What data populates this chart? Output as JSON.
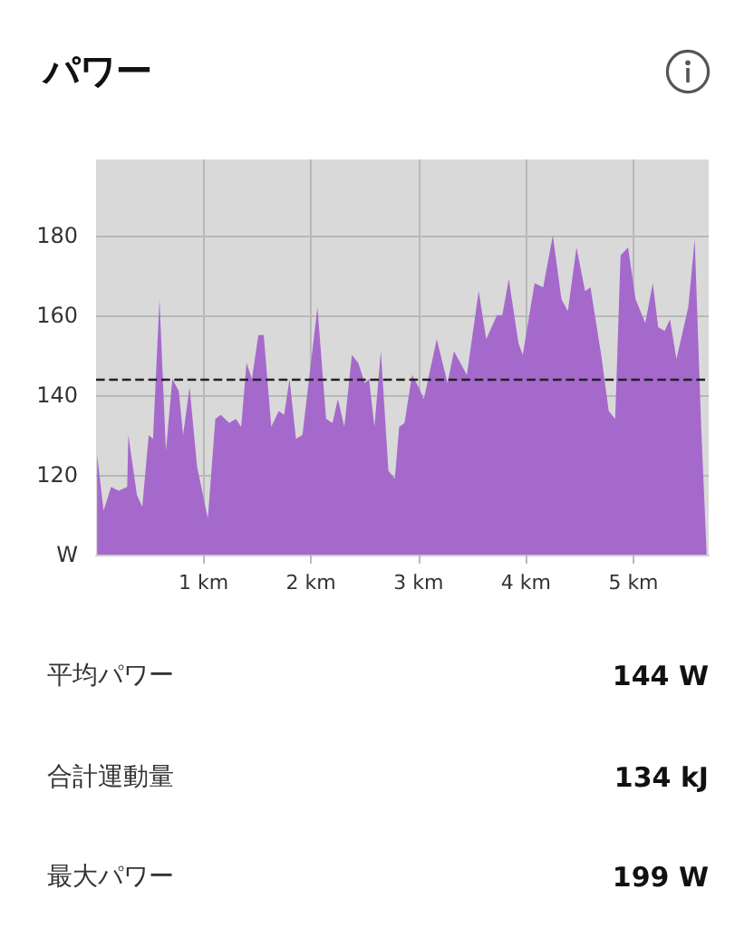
{
  "chart_data": {
    "type": "area",
    "title": "パワー",
    "x": [
      0.01,
      0.07,
      0.14,
      0.21,
      0.29,
      0.3,
      0.38,
      0.43,
      0.49,
      0.53,
      0.59,
      0.65,
      0.71,
      0.77,
      0.81,
      0.87,
      0.94,
      1.04,
      1.11,
      1.16,
      1.24,
      1.3,
      1.35,
      1.4,
      1.45,
      1.51,
      1.56,
      1.63,
      1.7,
      1.75,
      1.8,
      1.86,
      1.92,
      2.06,
      2.14,
      2.2,
      2.25,
      2.31,
      2.38,
      2.44,
      2.5,
      2.54,
      2.59,
      2.65,
      2.72,
      2.78,
      2.82,
      2.87,
      2.94,
      3.0,
      3.05,
      3.17,
      3.27,
      3.33,
      3.45,
      3.56,
      3.63,
      3.73,
      3.78,
      3.84,
      3.93,
      3.97,
      4.08,
      4.16,
      4.25,
      4.33,
      4.39,
      4.47,
      4.55,
      4.6,
      4.7,
      4.77,
      4.83,
      4.88,
      4.95,
      5.02,
      5.11,
      5.18,
      5.23,
      5.29,
      5.34,
      5.4,
      5.51,
      5.57,
      5.63,
      5.68
    ],
    "series": [
      {
        "color": "#a569cb",
        "values": [
          125,
          111,
          117,
          116,
          117,
          130,
          115,
          112,
          130,
          129,
          164,
          126,
          144,
          141,
          130,
          142,
          122,
          109,
          134,
          135,
          133,
          134,
          132,
          148,
          144,
          155,
          155,
          132,
          136,
          135,
          144,
          129,
          130,
          162,
          134,
          133,
          139,
          132,
          150,
          148,
          143,
          144,
          132,
          151,
          121,
          119,
          132,
          133,
          145,
          142,
          139,
          154,
          143,
          151,
          145,
          166,
          154,
          160,
          160,
          169,
          153,
          150,
          168,
          167,
          180,
          164,
          161,
          177,
          166,
          167,
          150,
          136,
          134,
          175,
          177,
          164,
          158,
          168,
          157,
          156,
          159,
          149,
          162,
          179,
          132,
          101
        ]
      }
    ],
    "xlim": [
      0,
      5.7
    ],
    "xticks": [
      {
        "value": 1,
        "label": "1 km"
      },
      {
        "value": 2,
        "label": "2 km"
      },
      {
        "value": 3,
        "label": "3 km"
      },
      {
        "value": 4,
        "label": "4 km"
      },
      {
        "value": 5,
        "label": "5 km"
      }
    ],
    "ylim": [
      100,
      199
    ],
    "yticks": [
      {
        "value": 100,
        "label": "W"
      },
      120,
      140,
      160,
      180
    ],
    "grid": true,
    "ref_lines": [
      {
        "axis": "y",
        "value": 144,
        "label": null,
        "color": "#222222",
        "line_style": "dashed"
      }
    ],
    "bands": [
      {
        "axis": "y",
        "from": 100,
        "to": 199,
        "label": null,
        "color": "#d9d9d9"
      }
    ],
    "annotations": [
      "平均パワー",
      "144 W",
      "合計運動量",
      "134 kJ",
      "最大パワー",
      "199 W"
    ]
  }
}
